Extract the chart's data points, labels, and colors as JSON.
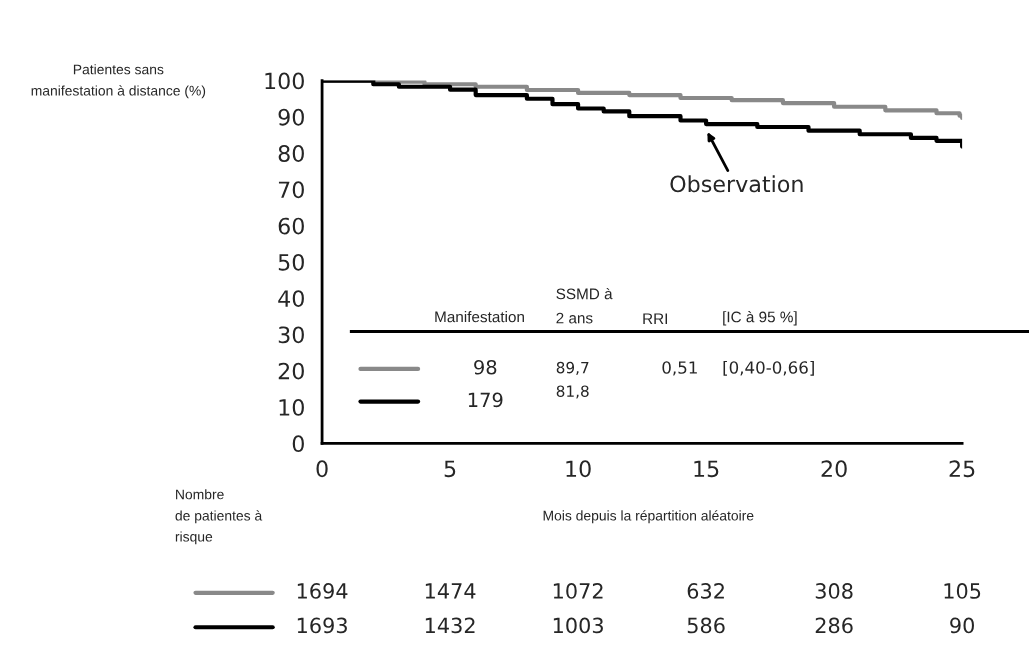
{
  "chart_data": {
    "type": "step",
    "ylabel": "Patientes sans\nmanifestation à distance (%)",
    "xlabel": "Mois depuis la répartition aléatoire",
    "xlim": [
      0,
      25
    ],
    "xticks": [
      0,
      5,
      10,
      15,
      20,
      25
    ],
    "ylim": [
      0,
      100
    ],
    "yticks": [
      0,
      10,
      20,
      30,
      40,
      50,
      60,
      70,
      80,
      90,
      100
    ],
    "grid": false,
    "legend": "top right",
    "series": [
      {
        "color": "#898989",
        "x": [
          0,
          2,
          4,
          6,
          8,
          10,
          12,
          14,
          16,
          18,
          20,
          22,
          24,
          24.9,
          25
        ],
        "values": [
          100,
          99.7,
          99,
          98.3,
          97.4,
          96.6,
          96,
          95.2,
          94.6,
          93.8,
          92.8,
          91.8,
          91,
          90.3,
          89.7
        ]
      },
      {
        "name": "Observation",
        "color": "#000000",
        "x": [
          0,
          2,
          3,
          5,
          6,
          8,
          9,
          10,
          11,
          12,
          14,
          15,
          17,
          19,
          21,
          23,
          24,
          25
        ],
        "values": [
          100,
          99,
          98.3,
          97.5,
          96,
          95,
          93.5,
          92.3,
          91.5,
          90.2,
          89,
          88,
          87.2,
          86.2,
          85.2,
          84.2,
          83.4,
          81.8
        ]
      }
    ],
    "annotations": [
      "Manifestation",
      "SSMD à\n2 ans",
      "RRI",
      "[IC à 95 %]",
      "98",
      "89,7",
      "0,51",
      "[0,40-0,66]",
      "179",
      "81,8",
      "Nombre\nde patientes à\nrisque",
      "1694",
      "1474",
      "1072",
      "632",
      "308",
      "105",
      "1693",
      "1432",
      "1003",
      "586",
      "286",
      "90"
    ]
  }
}
